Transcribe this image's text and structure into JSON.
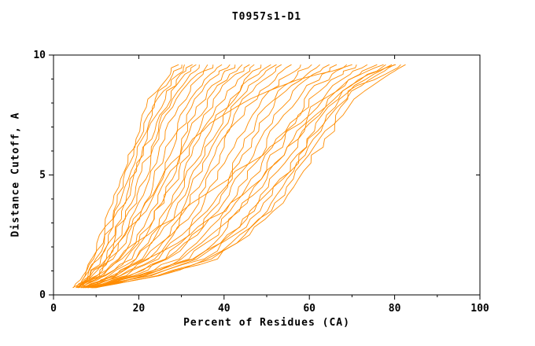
{
  "chart_data": {
    "type": "line",
    "title": "T0957s1-D1",
    "xlabel": "Percent of Residues (CA)",
    "ylabel": "Distance Cutoff, A",
    "xlim": [
      0,
      100
    ],
    "ylim": [
      0,
      10
    ],
    "x_major_ticks": [
      0,
      20,
      40,
      60,
      80,
      100
    ],
    "x_minor_ticks": [
      10,
      30,
      50,
      70,
      90
    ],
    "y_major_ticks": [
      0,
      5,
      10
    ],
    "y_minor_ticks": [
      1,
      2,
      3,
      4,
      6,
      7,
      8,
      9
    ],
    "grid": false,
    "legend_position": "none",
    "line_color": "#ff8c00",
    "axis_color": "#000000",
    "background_color": "#ffffff",
    "y_levels": [
      0.3,
      0.8,
      1.5,
      2.5,
      3.5,
      4.5,
      5.5,
      6.5,
      7.5,
      8.5,
      9.2,
      9.6
    ],
    "curves": [
      [
        5.0,
        7.0,
        9.0,
        11.0,
        13.0,
        15.0,
        17.0,
        19.0,
        21.0,
        24.0,
        27.0,
        29.0
      ],
      [
        5.1,
        7.4,
        9.6,
        11.7,
        13.8,
        16.4,
        17.9,
        19.9,
        21.9,
        25.0,
        28.0,
        30.1
      ],
      [
        5.2,
        7.7,
        10.2,
        12.4,
        14.6,
        16.6,
        18.7,
        20.8,
        22.9,
        26.0,
        29.1,
        31.2
      ],
      [
        5.3,
        8.1,
        10.7,
        13.1,
        15.3,
        17.5,
        19.6,
        21.7,
        23.8,
        26.9,
        30.1,
        32.2
      ],
      [
        5.4,
        8.4,
        11.3,
        14.6,
        16.1,
        18.3,
        20.4,
        22.6,
        24.8,
        27.9,
        31.2,
        33.3
      ],
      [
        5.5,
        8.8,
        11.9,
        14.5,
        16.9,
        19.1,
        21.3,
        23.5,
        25.7,
        28.9,
        32.2,
        34.4
      ],
      [
        5.7,
        9.3,
        12.8,
        15.6,
        18.1,
        20.3,
        22.6,
        24.9,
        25.9,
        30.4,
        33.8,
        36.0
      ],
      [
        5.8,
        9.9,
        13.6,
        16.6,
        19.2,
        21.6,
        23.9,
        26.2,
        28.5,
        31.8,
        35.3,
        37.6
      ],
      [
        6.0,
        10.4,
        13.4,
        17.7,
        20.4,
        22.8,
        25.2,
        27.6,
        29.9,
        33.3,
        36.9,
        39.3
      ],
      [
        6.1,
        11.0,
        15.4,
        18.7,
        21.6,
        24.0,
        26.5,
        28.9,
        31.3,
        34.8,
        38.4,
        40.9
      ],
      [
        6.3,
        11.5,
        16.3,
        19.8,
        22.8,
        25.3,
        29.2,
        30.3,
        32.8,
        36.3,
        40.0,
        42.5
      ],
      [
        6.4,
        12.0,
        17.1,
        20.8,
        23.9,
        26.5,
        29.0,
        31.6,
        34.2,
        37.7,
        41.6,
        44.1
      ],
      [
        6.6,
        12.6,
        18.0,
        21.9,
        23.8,
        27.7,
        30.3,
        33.0,
        35.6,
        39.2,
        43.1,
        45.7
      ],
      [
        6.7,
        13.1,
        18.9,
        22.9,
        26.3,
        28.9,
        31.6,
        34.3,
        37.0,
        40.7,
        44.7,
        47.4
      ],
      [
        6.9,
        13.7,
        19.7,
        24.0,
        27.4,
        30.2,
        32.9,
        35.7,
        38.4,
        44.0,
        46.2,
        49.0
      ],
      [
        7.0,
        14.2,
        20.6,
        25.0,
        28.6,
        31.4,
        34.2,
        37.0,
        39.8,
        43.6,
        47.8,
        50.6
      ],
      [
        7.2,
        14.7,
        21.5,
        27.8,
        29.8,
        32.6,
        35.5,
        38.4,
        41.2,
        45.1,
        49.4,
        52.2
      ],
      [
        7.3,
        15.3,
        22.3,
        27.1,
        30.9,
        33.9,
        36.8,
        39.7,
        42.6,
        46.5,
        50.9,
        53.8
      ],
      [
        7.5,
        16.0,
        23.5,
        28.5,
        32.5,
        35.5,
        38.5,
        39.8,
        44.5,
        48.5,
        53.0,
        56.0
      ],
      [
        7.7,
        16.7,
        24.7,
        29.9,
        34.1,
        37.1,
        40.2,
        43.3,
        46.4,
        50.5,
        55.1,
        58.2
      ],
      [
        7.9,
        17.4,
        25.8,
        31.3,
        35.6,
        40.6,
        41.9,
        45.1,
        48.3,
        52.4,
        57.2,
        60.3
      ],
      [
        8.1,
        18.2,
        27.0,
        32.7,
        37.2,
        40.4,
        43.7,
        46.9,
        50.1,
        54.4,
        59.2,
        62.5
      ],
      [
        8.3,
        18.9,
        26.4,
        34.1,
        38.7,
        42.1,
        45.4,
        48.7,
        52.0,
        56.3,
        61.3,
        64.6
      ],
      [
        8.5,
        19.6,
        29.3,
        35.5,
        40.3,
        43.7,
        47.1,
        50.5,
        53.9,
        58.3,
        63.4,
        66.8
      ],
      [
        8.7,
        20.3,
        30.5,
        36.9,
        41.9,
        45.3,
        48.8,
        52.3,
        57.8,
        60.3,
        65.5,
        69.0
      ],
      [
        8.9,
        21.0,
        31.6,
        38.3,
        43.4,
        47.0,
        50.5,
        54.1,
        57.7,
        62.2,
        67.6,
        71.1
      ],
      [
        9.1,
        21.8,
        32.8,
        39.7,
        43.2,
        48.6,
        52.3,
        55.9,
        59.5,
        64.2,
        69.6,
        73.3
      ],
      [
        9.3,
        22.5,
        33.9,
        41.1,
        46.5,
        50.3,
        54.0,
        57.7,
        61.4,
        66.1,
        71.7,
        75.4
      ],
      [
        9.5,
        23.2,
        35.1,
        42.5,
        48.1,
        51.9,
        57.5,
        59.5,
        63.3,
        68.1,
        73.8,
        77.6
      ],
      [
        9.7,
        23.9,
        36.3,
        43.9,
        49.7,
        53.5,
        57.4,
        61.3,
        65.2,
        70.1,
        75.9,
        79.8
      ],
      [
        9.9,
        24.5,
        37.1,
        45.0,
        50.8,
        54.8,
        58.7,
        62.7,
        66.6,
        69.3,
        77.4,
        81.4
      ],
      [
        10.0,
        25.0,
        38.0,
        46.0,
        52.0,
        56.0,
        60.0,
        64.0,
        68.0,
        73.0,
        79.0,
        83.0
      ],
      [
        5.5,
        9.0,
        13.0,
        17.0,
        21.0,
        24.0,
        28.0,
        33.0,
        40.0,
        50.0,
        62.0,
        70.0
      ],
      [
        7.0,
        14.0,
        22.0,
        32.0,
        40.0,
        46.0,
        52.0,
        57.0,
        62.0,
        68.0,
        74.0,
        79.0
      ],
      [
        6.0,
        10.0,
        15.0,
        22.0,
        30.0,
        38.0,
        46.0,
        53.0,
        60.0,
        66.0,
        72.0,
        77.0
      ],
      [
        9.0,
        20.0,
        33.0,
        41.0,
        47.0,
        52.0,
        56.0,
        60.0,
        64.0,
        69.0,
        75.0,
        80.0
      ]
    ]
  }
}
